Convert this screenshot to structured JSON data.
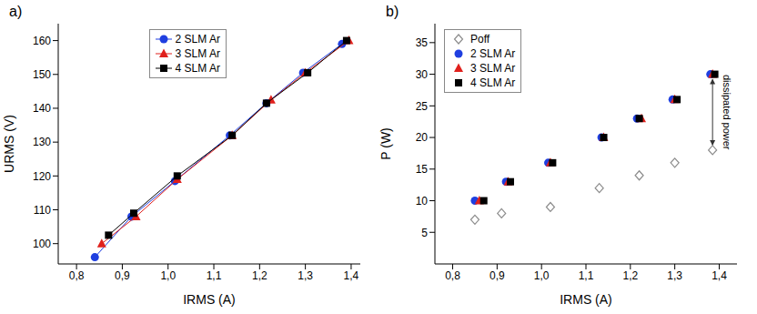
{
  "chart_data": [
    {
      "type": "scatter",
      "title": "a)",
      "xlabel": "IRMS (A)",
      "ylabel": "URMS (V)",
      "xlim": [
        0.76,
        1.42
      ],
      "ylim": [
        94,
        165
      ],
      "xticks": [
        {
          "value": 0.8,
          "label": "0,8"
        },
        {
          "value": 0.9,
          "label": "0,9"
        },
        {
          "value": 1.0,
          "label": "1,0"
        },
        {
          "value": 1.1,
          "label": "1,1"
        },
        {
          "value": 1.2,
          "label": "1,2"
        },
        {
          "value": 1.3,
          "label": "1,3"
        },
        {
          "value": 1.4,
          "label": "1,4"
        }
      ],
      "yticks": [
        100,
        110,
        120,
        130,
        140,
        150,
        160
      ],
      "legend": "upper center",
      "grid": false,
      "series": [
        {
          "name": "2 SLM Ar",
          "color": "#1f3fe0",
          "marker": "circle",
          "line_style": "solid",
          "x": [
            0.84,
            0.92,
            1.015,
            1.135,
            1.215,
            1.295,
            1.38
          ],
          "values": [
            96,
            108,
            118.5,
            132,
            141.5,
            150.5,
            159
          ]
        },
        {
          "name": "3 SLM Ar",
          "color": "#e0201c",
          "marker": "triangle",
          "line_style": "solid",
          "x": [
            0.855,
            0.93,
            1.02,
            1.14,
            1.225,
            1.3,
            1.395
          ],
          "values": [
            100,
            108,
            119,
            132,
            142.5,
            150.5,
            160
          ]
        },
        {
          "name": "4 SLM Ar",
          "color": "#000000",
          "marker": "square",
          "line_style": "solid",
          "x": [
            0.87,
            0.925,
            1.02,
            1.14,
            1.215,
            1.305,
            1.39
          ],
          "values": [
            102.5,
            109,
            120,
            132,
            141.5,
            150.5,
            160
          ]
        }
      ]
    },
    {
      "type": "scatter",
      "title": "b)",
      "xlabel": "IRMS (A)",
      "ylabel": "P (W)",
      "xlim": [
        0.76,
        1.44
      ],
      "ylim": [
        0,
        38
      ],
      "xticks": [
        {
          "value": 0.8,
          "label": "0,8"
        },
        {
          "value": 0.9,
          "label": "0,9"
        },
        {
          "value": 1.0,
          "label": "1,0"
        },
        {
          "value": 1.1,
          "label": "1,1"
        },
        {
          "value": 1.2,
          "label": "1,2"
        },
        {
          "value": 1.3,
          "label": "1,3"
        },
        {
          "value": 1.4,
          "label": "1,4"
        }
      ],
      "yticks": [
        5,
        10,
        15,
        20,
        25,
        30,
        35
      ],
      "legend": "upper left",
      "grid": false,
      "annotation": "dissipated power",
      "series": [
        {
          "name": "Poff",
          "color": "#8c8c8c",
          "marker": "open_diamond",
          "x": [
            0.85,
            0.91,
            1.02,
            1.13,
            1.22,
            1.3,
            1.385
          ],
          "values": [
            7,
            8,
            9,
            12,
            14,
            16,
            18
          ]
        },
        {
          "name": "2 SLM Ar",
          "color": "#1f3fe0",
          "marker": "circle",
          "x": [
            0.85,
            0.92,
            1.015,
            1.135,
            1.215,
            1.295,
            1.38
          ],
          "values": [
            10,
            13,
            16,
            20,
            23,
            26,
            30
          ]
        },
        {
          "name": "3 SLM Ar",
          "color": "#e0201c",
          "marker": "triangle",
          "x": [
            0.86,
            0.925,
            1.02,
            1.14,
            1.225,
            1.3,
            1.385
          ],
          "values": [
            10,
            13,
            16,
            20,
            23,
            26,
            30
          ]
        },
        {
          "name": "4 SLM Ar",
          "color": "#000000",
          "marker": "square",
          "x": [
            0.87,
            0.93,
            1.025,
            1.14,
            1.22,
            1.305,
            1.39
          ],
          "values": [
            10,
            13,
            16,
            20,
            23,
            26,
            30
          ]
        }
      ]
    }
  ]
}
